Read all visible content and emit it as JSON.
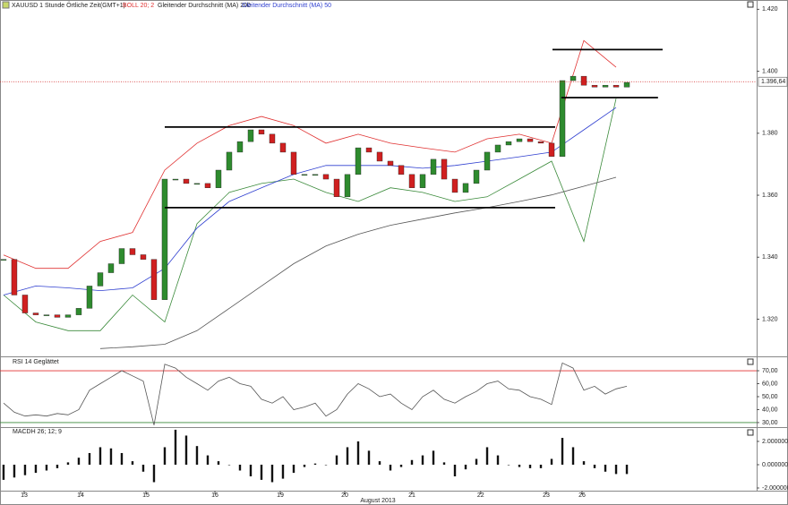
{
  "chart_data": [
    {
      "type": "candlestick",
      "title": "XAUUSD 1 Stunde Örtliche Zeit(GMT+1)",
      "up_color": "#2e8b2e",
      "down_color": "#d02020",
      "values": [
        1.3393,
        1.3278,
        1.322,
        1.3214,
        1.3214,
        1.3206,
        1.3214,
        1.3235,
        1.3307,
        1.335,
        1.3379,
        1.3428,
        1.3408,
        1.3393,
        1.3263,
        1.3652,
        1.3652,
        1.3638,
        1.3638,
        1.3624,
        1.3681,
        1.3739,
        1.3773,
        1.3811,
        1.3797,
        1.3768,
        1.3739,
        1.3667,
        1.3667,
        1.3667,
        1.3652,
        1.3595,
        1.3667,
        1.3753,
        1.3739,
        1.371,
        1.3696,
        1.3667,
        1.3624,
        1.3667,
        1.3716,
        1.3652,
        1.3609,
        1.3638,
        1.3681,
        1.3739,
        1.3762,
        1.3773,
        1.3782,
        1.3773,
        1.3768,
        1.3725,
        1.397,
        1.3984,
        1.3955,
        1.3949,
        1.3955,
        1.3949,
        1.3964
      ],
      "xlim": [
        -0.33,
        70.08
      ],
      "ylim": [
        1.308,
        1.423
      ],
      "yticks": [
        {
          "value": 1.32,
          "label": "1.320"
        },
        {
          "value": 1.34,
          "label": "1.340"
        },
        {
          "value": 1.36,
          "label": "1.360"
        },
        {
          "value": 1.38,
          "label": "1.380"
        },
        {
          "value": 1.4,
          "label": "1.400"
        },
        {
          "value": 1.42,
          "label": "1.420"
        }
      ],
      "indicator_x": [
        0,
        3,
        6,
        9,
        12,
        15,
        18,
        21,
        24,
        27,
        30,
        33,
        36,
        39,
        42,
        45,
        48,
        51,
        54,
        57
      ],
      "series": [
        {
          "name": "BOLL 20; 2",
          "color": "#e03030",
          "lower_color": "#3a8a3a",
          "values": [
            1.3407,
            1.3364,
            1.3364,
            1.3451,
            1.348,
            1.3681,
            1.3768,
            1.3825,
            1.3854,
            1.3825,
            1.3768,
            1.3797,
            1.3768,
            1.3753,
            1.3739,
            1.3782,
            1.3797,
            1.3768,
            1.4099,
            1.4013
          ],
          "lower": [
            1.3278,
            1.3191,
            1.3163,
            1.3163,
            1.3278,
            1.3191,
            1.3508,
            1.3609,
            1.3638,
            1.3652,
            1.3609,
            1.358,
            1.3624,
            1.3609,
            1.358,
            1.3595,
            1.3652,
            1.371,
            1.3451,
            1.3912
          ]
        },
        {
          "name": "Gleitender Durchschnitt (MA) 200",
          "color": "#555555",
          "values": [
            null,
            null,
            null,
            1.3105,
            1.3111,
            1.3119,
            1.3163,
            1.3235,
            1.3307,
            1.3379,
            1.3436,
            1.3474,
            1.3503,
            1.3523,
            1.3543,
            1.356,
            1.358,
            1.3601,
            1.3629,
            1.3658
          ]
        },
        {
          "name": "Gleitender Durchschnitt (MA) 50",
          "color": "#2f3fd0",
          "values": [
            1.3278,
            1.3307,
            1.3301,
            1.3292,
            1.3301,
            1.3364,
            1.3494,
            1.358,
            1.3624,
            1.3667,
            1.3696,
            1.3696,
            1.3696,
            1.3687,
            1.3696,
            1.371,
            1.3724,
            1.3739,
            1.3811,
            1.3883
          ]
        }
      ],
      "last_price": {
        "value": 1.39664,
        "label": "1.396,64"
      },
      "levels": [
        {
          "value": 1.382,
          "x": [
            15,
            51.33
          ]
        },
        {
          "value": 1.356,
          "x": [
            15,
            51.33
          ]
        },
        {
          "value": 1.407,
          "x": [
            51.08,
            61.33
          ]
        },
        {
          "value": 1.3915,
          "x": [
            51.9,
            60.9
          ]
        }
      ]
    },
    {
      "type": "line",
      "title": "RSI 14 Geglättet",
      "color": "#555555",
      "values": [
        45,
        38,
        35,
        36,
        35,
        37,
        36,
        40,
        55,
        60,
        65,
        70,
        66,
        62,
        28,
        75,
        72,
        65,
        60,
        55,
        62,
        65,
        60,
        58,
        48,
        45,
        50,
        40,
        42,
        45,
        35,
        40,
        52,
        60,
        56,
        50,
        52,
        45,
        40,
        50,
        55,
        48,
        45,
        50,
        54,
        60,
        62,
        56,
        55,
        50,
        48,
        44,
        76,
        72,
        55,
        58,
        52,
        56,
        58
      ],
      "xlim": [
        -0.33,
        70.08
      ],
      "ylim": [
        26.5,
        79.7
      ],
      "yticks": [
        {
          "value": 30,
          "label": "30,00"
        },
        {
          "value": 40,
          "label": "40,00"
        },
        {
          "value": 50,
          "label": "50,00"
        },
        {
          "value": 60,
          "label": "60,00"
        },
        {
          "value": 70,
          "label": "70,00"
        }
      ],
      "upper_band": 70,
      "lower_band": 30,
      "upper_color": "#e03030",
      "lower_color": "#3a8a3a"
    },
    {
      "type": "bar",
      "title": "MACDH 26; 12; 9",
      "color": "#111111",
      "values": [
        -1.3,
        -1.1,
        -0.9,
        -0.7,
        -0.5,
        -0.3,
        0.2,
        0.6,
        1.0,
        1.5,
        1.4,
        1.0,
        0.3,
        -0.6,
        -1.5,
        1.5,
        3.0,
        2.5,
        1.6,
        0.8,
        0.3,
        0,
        -0.5,
        -1.0,
        -1.3,
        -1.5,
        -1.2,
        -0.7,
        -0.2,
        0.1,
        0,
        0.8,
        1.5,
        2.0,
        1.2,
        0.3,
        -0.5,
        -0.2,
        0.4,
        0.8,
        1.2,
        0.2,
        -1.0,
        -0.4,
        0.5,
        1.5,
        0.8,
        0,
        -0.2,
        -0.3,
        -0.3,
        0.5,
        2.3,
        1.5,
        0.3,
        -0.3,
        -0.6,
        -0.8,
        -0.8
      ],
      "xlim": [
        -0.33,
        70.08
      ],
      "ylim": [
        -2.23,
        3.15
      ],
      "yticks": [
        {
          "value": -2,
          "label": "-2.000000"
        },
        {
          "value": 0,
          "label": "0.000000"
        },
        {
          "value": 2,
          "label": "2.000000"
        }
      ],
      "xticks": [
        {
          "value": 1.92,
          "label": "13"
        },
        {
          "value": 7.17,
          "label": "14"
        },
        {
          "value": 13.25,
          "label": "15"
        },
        {
          "value": 19.67,
          "label": "16"
        },
        {
          "value": 25.75,
          "label": "19"
        },
        {
          "value": 31.75,
          "label": "20"
        },
        {
          "value": 38,
          "label": "21"
        },
        {
          "value": 44.4,
          "label": "22"
        },
        {
          "value": 50.5,
          "label": "23"
        },
        {
          "value": 53.83,
          "label": "26"
        }
      ],
      "xlabel": "August 2013"
    }
  ]
}
